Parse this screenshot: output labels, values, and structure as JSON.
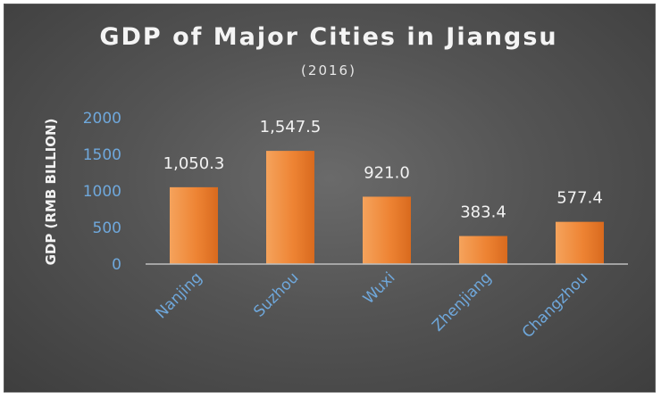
{
  "chart_data": {
    "type": "bar",
    "title": "GDP of Major Cities in Jiangsu",
    "subtitle": "(2016)",
    "ylabel": "GDP (RMB BILLION)",
    "xlabel": "",
    "categories": [
      "Nanjing",
      "Suzhou",
      "Wuxi",
      "Zhenjiang",
      "Changzhou"
    ],
    "values": [
      1050.3,
      1547.5,
      921.0,
      383.4,
      577.4
    ],
    "value_labels": [
      "1,050.3",
      "1,547.5",
      "921.0",
      "383.4",
      "577.4"
    ],
    "yticks": [
      "0",
      "500",
      "1000",
      "1500",
      "2000"
    ],
    "ylim": [
      0,
      2000
    ],
    "grid": false,
    "legend": "none",
    "colors": {
      "bar": "#ed7d31",
      "tick_label": "#6fa8dc",
      "axis": "#bfbfbf",
      "text": "#f2f2f2"
    }
  }
}
